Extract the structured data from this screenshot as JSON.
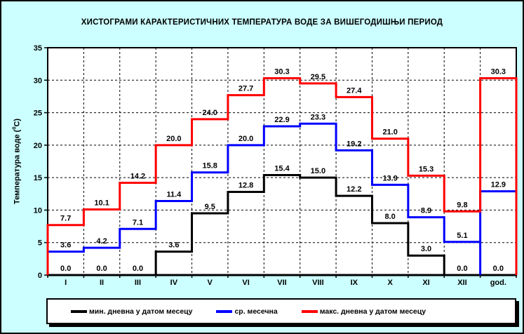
{
  "title": "ХИСТОГРАМИ КАРАКТЕРИСТИЧНИХ ТЕМПЕРАТУРА ВОДЕ ЗА ВИШЕГОДИШЊИ ПЕРИОД",
  "colors": {
    "background": "#CCFFFF",
    "plot_background": "#FFFFFF",
    "axis": "#000000",
    "grid": "#000000"
  },
  "y_axis": {
    "label_prefix": "Температура воде (",
    "label_sup": "0",
    "label_suffix": "C)",
    "ticks": [
      0,
      5,
      10,
      15,
      20,
      25,
      30,
      35
    ]
  },
  "chart_data": {
    "type": "line",
    "subtype": "step-histogram",
    "title": "ХИСТОГРАМИ КАРАКТЕРИСТИЧНИХ ТЕМПЕРАТУРА ВОДЕ ЗА ВИШЕГОДИШЊИ ПЕРИОД",
    "xlabel": "",
    "ylabel": "Температура воде (0C)",
    "ylim": [
      0,
      35
    ],
    "grid": true,
    "legend_position": "bottom",
    "categories": [
      "I",
      "II",
      "III",
      "IV",
      "V",
      "VI",
      "VII",
      "VIII",
      "IX",
      "X",
      "XI",
      "XII",
      "god."
    ],
    "series": [
      {
        "name": "мин. дневна у датом месецу",
        "color": "#000000",
        "values": [
          0.0,
          0.0,
          0.0,
          3.6,
          9.5,
          12.8,
          15.4,
          15.0,
          12.2,
          8.0,
          3.0,
          0.0,
          0.0
        ],
        "close_to_zero_before_last": false
      },
      {
        "name": "ср. месечна",
        "color": "#0000FF",
        "values": [
          3.6,
          4.2,
          7.1,
          11.4,
          15.8,
          20.0,
          22.9,
          23.3,
          19.2,
          13.9,
          8.9,
          5.1,
          12.9
        ],
        "close_to_zero_before_last": true
      },
      {
        "name": "макс. дневна у датом месецу",
        "color": "#FF0000",
        "values": [
          7.7,
          10.1,
          14.2,
          20.0,
          24.0,
          27.7,
          30.3,
          29.5,
          27.4,
          21.0,
          15.3,
          9.8,
          30.3
        ],
        "close_to_zero_before_last": false
      }
    ]
  }
}
